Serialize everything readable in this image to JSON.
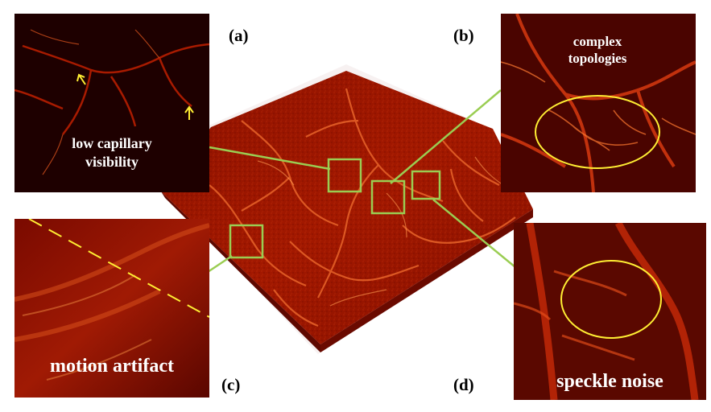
{
  "panel_labels": {
    "a": "(a)",
    "b": "(b)",
    "c": "(c)",
    "d": "(d)"
  },
  "annotations": {
    "a_line1": "low capillary",
    "a_line2": "visibility",
    "b_line1": "complex",
    "b_line2": "topologies",
    "c": "motion artifact",
    "d": "speckle noise"
  },
  "colors": {
    "connector": "#9acd52",
    "highlight": "#ffee33",
    "vessel_dark": "#3a0000",
    "vessel_mid": "#9a1a00",
    "vessel_bright": "#ff6a20"
  }
}
